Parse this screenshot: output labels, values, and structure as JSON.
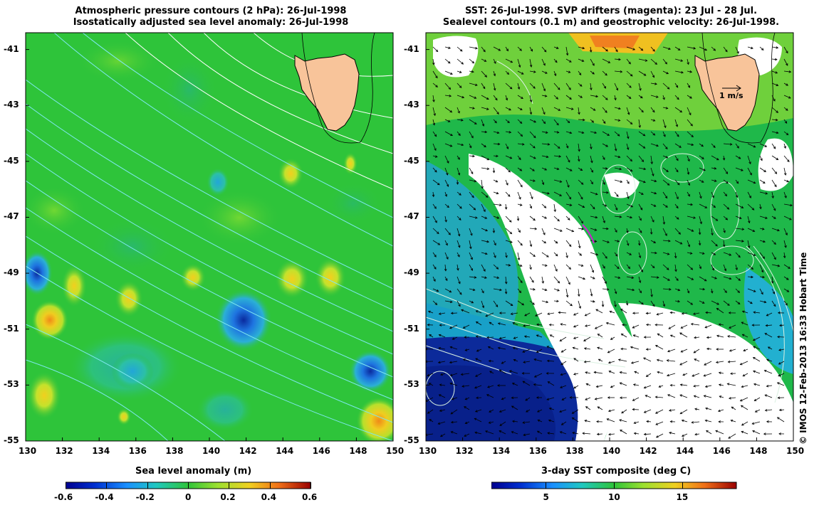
{
  "left_panel": {
    "title_line1": "Atmospheric pressure contours (2 hPa): 26-Jul-1998",
    "title_line2": "Isostatically adjusted sea level anomaly: 26-Jul-1998",
    "lat_labels": [
      "-41",
      "-43",
      "-45",
      "-47",
      "-49",
      "-51",
      "-53",
      "-55"
    ],
    "lon_labels": [
      "130",
      "132",
      "134",
      "136",
      "138",
      "140",
      "142",
      "144",
      "146",
      "148",
      "150"
    ],
    "colorbar_title": "Sea level anomaly (m)",
    "colorbar_ticks": [
      "-0.6",
      "-0.4",
      "-0.2",
      "0",
      "0.2",
      "0.4",
      "0.6"
    ],
    "colorbar_range": [
      -0.6,
      0.6
    ]
  },
  "right_panel": {
    "title_line1": "SST: 26-Jul-1998. SVP drifters (magenta): 23 Jul - 28 Jul.",
    "title_line2": "Sealevel contours (0.1 m) and geostrophic velocity: 26-Jul-1998.",
    "lat_labels": [
      "-41",
      "-43",
      "-45",
      "-47",
      "-49",
      "-51",
      "-53",
      "-55"
    ],
    "lon_labels": [
      "130",
      "132",
      "134",
      "136",
      "138",
      "140",
      "142",
      "144",
      "146",
      "148",
      "150"
    ],
    "velocity_scale_label": "1 m/s",
    "colorbar_title": "3-day SST composite (deg C)",
    "colorbar_ticks": [
      "5",
      "10",
      "15"
    ],
    "colorbar_range": [
      1,
      19
    ]
  },
  "credit": "© IMOS 12-Feb-2013 16:33 Hobart Time",
  "map_extent": {
    "lon_range": [
      130,
      150
    ],
    "lat_range": [
      -55,
      -40.4
    ]
  },
  "colors": {
    "land": "#f8c49a",
    "ocean_green": "#2ec43a",
    "contour_cyan": "#7ee8ef",
    "contour_white": "#ffffff",
    "no_data": "#ffffff"
  }
}
